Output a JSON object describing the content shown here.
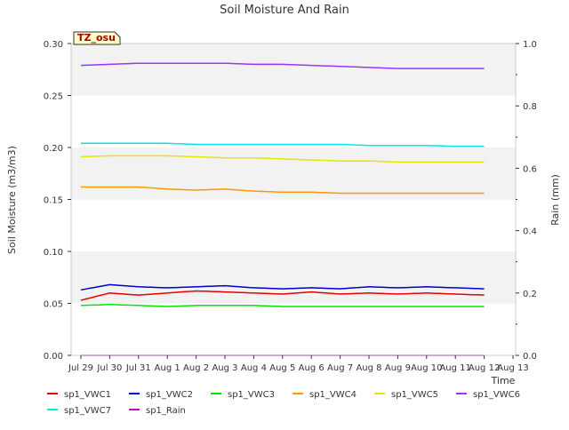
{
  "chart_data": {
    "type": "line",
    "title": "Soil Moisture And Rain",
    "station_label": "TZ_osu",
    "xlabel": "Time",
    "ylabel_left": "Soil Moisture (m3/m3)",
    "ylabel_right": "Rain (mm)",
    "ylim_left": [
      0.0,
      0.3
    ],
    "ylim_right": [
      0.0,
      1.0
    ],
    "grid": false,
    "banded_background": true,
    "legend_position": "bottom",
    "x_ticks": [
      "Jul 29",
      "Jul 30",
      "Jul 31",
      "Aug 1",
      "Aug 2",
      "Aug 3",
      "Aug 4",
      "Aug 5",
      "Aug 6",
      "Aug 7",
      "Aug 8",
      "Aug 9",
      "Aug 10",
      "Aug 11",
      "Aug 12",
      "Aug 13"
    ],
    "y_ticks_left": [
      "0.00",
      "0.05",
      "0.10",
      "0.15",
      "0.20",
      "0.25",
      "0.30"
    ],
    "y_ticks_right": [
      "0.0",
      "0.2",
      "0.4",
      "0.6",
      "0.8",
      "1.0"
    ],
    "x": [
      "Jul 29",
      "Jul 30",
      "Jul 31",
      "Aug 1",
      "Aug 2",
      "Aug 3",
      "Aug 4",
      "Aug 5",
      "Aug 6",
      "Aug 7",
      "Aug 8",
      "Aug 9",
      "Aug 10",
      "Aug 11",
      "Aug 12"
    ],
    "series": [
      {
        "name": "sp1_VWC1",
        "color": "#e60000",
        "axis": "left",
        "values": [
          0.053,
          0.06,
          0.058,
          0.06,
          0.062,
          0.061,
          0.06,
          0.059,
          0.061,
          0.059,
          0.06,
          0.059,
          0.06,
          0.059,
          0.058
        ]
      },
      {
        "name": "sp1_VWC2",
        "color": "#0000cc",
        "axis": "left",
        "values": [
          0.063,
          0.068,
          0.066,
          0.065,
          0.066,
          0.067,
          0.065,
          0.064,
          0.065,
          0.064,
          0.066,
          0.065,
          0.066,
          0.065,
          0.064
        ]
      },
      {
        "name": "sp1_VWC3",
        "color": "#00e600",
        "axis": "left",
        "values": [
          0.048,
          0.049,
          0.048,
          0.047,
          0.048,
          0.048,
          0.048,
          0.047,
          0.047,
          0.047,
          0.047,
          0.047,
          0.047,
          0.047,
          0.047
        ]
      },
      {
        "name": "sp1_VWC4",
        "color": "#ff9900",
        "axis": "left",
        "values": [
          0.162,
          0.162,
          0.162,
          0.16,
          0.159,
          0.16,
          0.158,
          0.157,
          0.157,
          0.156,
          0.156,
          0.156,
          0.156,
          0.156,
          0.156
        ]
      },
      {
        "name": "sp1_VWC5",
        "color": "#e6e600",
        "axis": "left",
        "values": [
          0.191,
          0.192,
          0.192,
          0.192,
          0.191,
          0.19,
          0.19,
          0.189,
          0.188,
          0.187,
          0.187,
          0.186,
          0.186,
          0.186,
          0.186
        ]
      },
      {
        "name": "sp1_VWC6",
        "color": "#9933ff",
        "axis": "left",
        "values": [
          0.279,
          0.28,
          0.281,
          0.281,
          0.281,
          0.281,
          0.28,
          0.28,
          0.279,
          0.278,
          0.277,
          0.276,
          0.276,
          0.276,
          0.276
        ]
      },
      {
        "name": "sp1_VWC7",
        "color": "#00e6e6",
        "axis": "left",
        "values": [
          0.204,
          0.204,
          0.204,
          0.204,
          0.203,
          0.203,
          0.203,
          0.203,
          0.203,
          0.203,
          0.202,
          0.202,
          0.202,
          0.201,
          0.201
        ]
      },
      {
        "name": "sp1_Rain",
        "color": "#cc00cc",
        "axis": "right",
        "values": [
          0.0,
          0.0,
          0.0,
          0.0,
          0.0,
          0.0,
          0.0,
          0.0,
          0.0,
          0.0,
          0.0,
          0.0,
          0.0,
          0.0,
          0.0
        ]
      }
    ]
  }
}
